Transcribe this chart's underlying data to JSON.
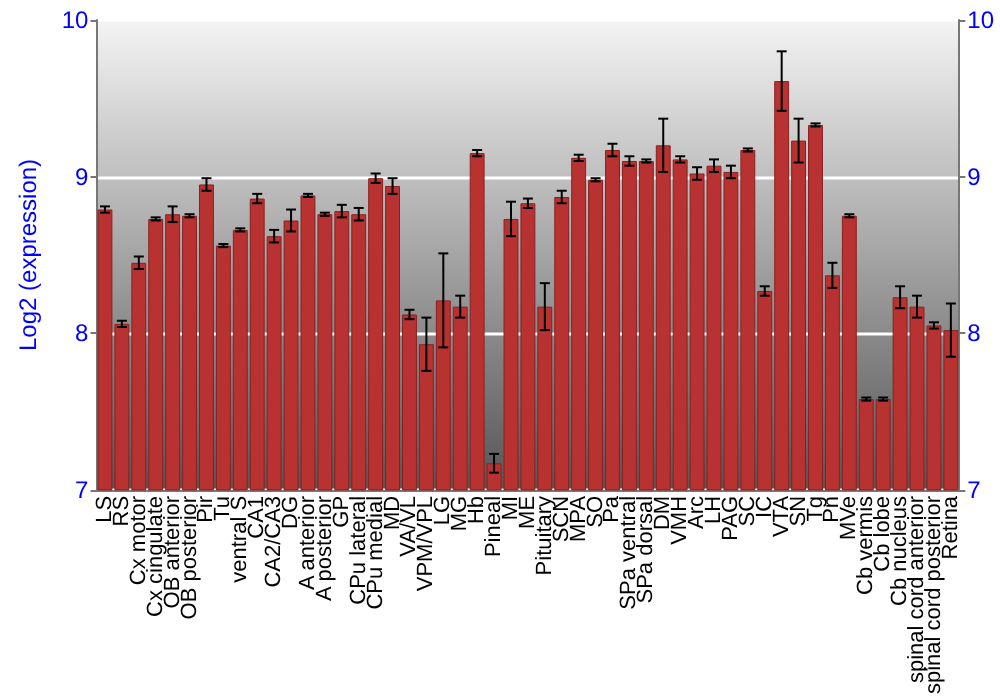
{
  "chart_data": {
    "type": "bar",
    "ylabel": "Log2 (expression)",
    "categories": [
      "LS",
      "RS",
      "Cx motor",
      "Cx cingulate",
      "OB anterior",
      "OB posterior",
      "Pir",
      "Tu",
      "ventral S",
      "CA1",
      "CA2/CA3",
      "DG",
      "A anterior",
      "A posterior",
      "GP",
      "CPu lateral",
      "CPu medial",
      "MD",
      "VA/VL",
      "VPM/VPL",
      "LG",
      "MG",
      "Hb",
      "Pineal",
      "MI",
      "ME",
      "Pituitary",
      "SCN",
      "MPA",
      "SO",
      "Pa",
      "SPa ventral",
      "SPa dorsal",
      "DM",
      "VMH",
      "Arc",
      "LH",
      "PAG",
      "SC",
      "IC",
      "VTA",
      "SN",
      "Tg",
      "Pn",
      "MVe",
      "Cb vermis",
      "Cb lobe",
      "Cb nucleus",
      "spinal cord anterior",
      "spinal cord posterior",
      "Retina"
    ],
    "series": [
      {
        "color": "#b83232",
        "values": [
          8.79,
          8.06,
          8.45,
          8.73,
          8.76,
          8.75,
          8.95,
          8.56,
          8.66,
          8.86,
          8.62,
          8.72,
          8.88,
          8.76,
          8.78,
          8.76,
          8.99,
          8.94,
          8.12,
          7.93,
          8.21,
          8.17,
          9.15,
          7.17,
          8.73,
          8.83,
          8.17,
          8.87,
          9.12,
          8.98,
          9.17,
          9.1,
          9.1,
          9.2,
          9.11,
          9.02,
          9.07,
          9.03,
          9.17,
          8.27,
          9.61,
          9.23,
          9.33,
          8.37,
          8.75,
          7.58,
          7.58,
          8.23,
          8.17,
          8.05,
          8.02
        ],
        "errors": [
          0.02,
          0.02,
          0.04,
          0.01,
          0.05,
          0.01,
          0.04,
          0.01,
          0.01,
          0.03,
          0.04,
          0.07,
          0.01,
          0.01,
          0.04,
          0.04,
          0.03,
          0.05,
          0.03,
          0.17,
          0.3,
          0.07,
          0.02,
          0.06,
          0.11,
          0.03,
          0.15,
          0.04,
          0.02,
          0.01,
          0.04,
          0.03,
          0.01,
          0.17,
          0.02,
          0.04,
          0.04,
          0.04,
          0.01,
          0.03,
          0.19,
          0.14,
          0.01,
          0.08,
          0.01,
          0.01,
          0.01,
          0.07,
          0.07,
          0.02,
          0.17
        ]
      }
    ],
    "ylim": [
      7,
      10
    ],
    "yticks": [
      7,
      8,
      9,
      10
    ],
    "y2lim": [
      7,
      10
    ],
    "y2ticks": [
      7,
      8,
      9,
      10
    ],
    "grid": "y"
  }
}
